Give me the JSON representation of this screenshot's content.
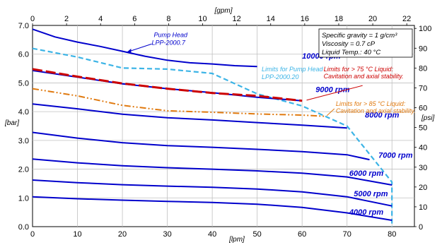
{
  "chart_data": {
    "type": "line",
    "x_label": "[lpm]",
    "y_label": "[bar]",
    "x2_label": "[gpm]",
    "y2_label": "[psi]",
    "xlim": [
      0,
      85
    ],
    "ylim": [
      0,
      7
    ],
    "x2lim": [
      0,
      22.45
    ],
    "y2lim": [
      0,
      101.5
    ],
    "x_ticks": [
      "0",
      "10",
      "20",
      "30",
      "40",
      "50",
      "60",
      "70",
      "80"
    ],
    "y_ticks": [
      "0.0",
      "1.0",
      "2.0",
      "3.0",
      "4.0",
      "5.0",
      "6.0",
      "7.0"
    ],
    "x2_ticks": [
      "0",
      "2",
      "4",
      "6",
      "8",
      "10",
      "12",
      "14",
      "16",
      "18",
      "20",
      "22"
    ],
    "y2_ticks": [
      "0",
      "10",
      "20",
      "30",
      "40",
      "50",
      "60",
      "70",
      "80",
      "90",
      "100"
    ],
    "grid": true,
    "info_box": [
      "Specific gravity = 1 g/cm³",
      "Viscosity = 0.7 cP",
      "Liquid Temp.: 40 °C"
    ],
    "colors": {
      "rpm": "#0000cc",
      "pump_head_2000_20": "#3cb4e6",
      "limit_75": "#cc0000",
      "limit_85": "#e07a10",
      "grid": "#c0c0c0"
    },
    "rpm_curves": [
      {
        "name": "10000 rpm",
        "label_x": 60,
        "label_y": 5.85,
        "points": [
          [
            0,
            6.87
          ],
          [
            5,
            6.6
          ],
          [
            10,
            6.42
          ],
          [
            15,
            6.27
          ],
          [
            20,
            6.1
          ],
          [
            25,
            5.93
          ],
          [
            30,
            5.79
          ],
          [
            35,
            5.7
          ],
          [
            40,
            5.66
          ],
          [
            45,
            5.6
          ],
          [
            50,
            5.57
          ]
        ]
      },
      {
        "name": "9000 rpm",
        "label_x": 63,
        "label_y": 4.68,
        "points": [
          [
            0,
            5.43
          ],
          [
            10,
            5.2
          ],
          [
            20,
            4.97
          ],
          [
            30,
            4.8
          ],
          [
            40,
            4.66
          ],
          [
            50,
            4.5
          ],
          [
            60,
            4.38
          ]
        ]
      },
      {
        "name": "8000 rpm",
        "label_x": 74,
        "label_y": 3.8,
        "points": [
          [
            0,
            4.27
          ],
          [
            10,
            4.1
          ],
          [
            20,
            3.91
          ],
          [
            30,
            3.79
          ],
          [
            40,
            3.71
          ],
          [
            50,
            3.62
          ],
          [
            60,
            3.53
          ],
          [
            70,
            3.43
          ]
        ]
      },
      {
        "name": "7000 rpm",
        "label_x": 77,
        "label_y": 2.4,
        "points": [
          [
            0,
            3.28
          ],
          [
            10,
            3.08
          ],
          [
            20,
            2.92
          ],
          [
            30,
            2.82
          ],
          [
            40,
            2.76
          ],
          [
            50,
            2.69
          ],
          [
            60,
            2.61
          ],
          [
            70,
            2.5
          ],
          [
            75,
            2.33
          ]
        ]
      },
      {
        "name": "6000 rpm",
        "label_x": 70.5,
        "label_y": 1.77,
        "points": [
          [
            0,
            2.35
          ],
          [
            10,
            2.22
          ],
          [
            20,
            2.12
          ],
          [
            30,
            2.05
          ],
          [
            40,
            2.0
          ],
          [
            50,
            1.94
          ],
          [
            60,
            1.86
          ],
          [
            70,
            1.73
          ],
          [
            80,
            1.45
          ]
        ]
      },
      {
        "name": "5000 rpm",
        "label_x": 71.5,
        "label_y": 1.06,
        "points": [
          [
            0,
            1.62
          ],
          [
            10,
            1.53
          ],
          [
            20,
            1.46
          ],
          [
            30,
            1.41
          ],
          [
            40,
            1.37
          ],
          [
            50,
            1.31
          ],
          [
            60,
            1.21
          ],
          [
            70,
            1.04
          ],
          [
            80,
            0.72
          ]
        ]
      },
      {
        "name": "4000 rpm",
        "label_x": 70.5,
        "label_y": 0.42,
        "points": [
          [
            0,
            1.04
          ],
          [
            10,
            0.97
          ],
          [
            20,
            0.92
          ],
          [
            30,
            0.88
          ],
          [
            40,
            0.84
          ],
          [
            50,
            0.78
          ],
          [
            60,
            0.67
          ],
          [
            70,
            0.48
          ],
          [
            80,
            0.22
          ]
        ]
      }
    ],
    "pump_head_2000_20": {
      "name": "Limits for Pump Head LPP-2000.20",
      "label_lines": [
        "Limits for Pump Head",
        "LPP-2000.20"
      ],
      "label_x": 51,
      "label_y": 5.4,
      "points": [
        [
          0,
          6.2
        ],
        [
          10,
          5.9
        ],
        [
          20,
          5.52
        ],
        [
          30,
          5.48
        ],
        [
          40,
          5.33
        ],
        [
          50,
          4.62
        ],
        [
          60,
          4.2
        ],
        [
          70,
          3.5
        ],
        [
          80,
          1.55
        ],
        [
          80,
          0.0
        ]
      ]
    },
    "limit_75": {
      "name": "Limits for > 75 °C Liquid: Cavitation and axial stability.",
      "label_lines": [
        "Limits for > 75 °C Liquid:",
        "Cavitation and axial stability."
      ],
      "label_x": 64.8,
      "label_y": 5.4,
      "points": [
        [
          0,
          5.48
        ],
        [
          10,
          5.22
        ],
        [
          20,
          4.98
        ],
        [
          30,
          4.8
        ],
        [
          40,
          4.65
        ],
        [
          50,
          4.55
        ],
        [
          60,
          4.38
        ]
      ]
    },
    "limit_85": {
      "name": "Limits for > 85 °C Liquid: Cavitation and axial stability.",
      "label_lines": [
        "Limits for > 85 °C Liquid:",
        "Cavitation and axial stability."
      ],
      "label_x": 67.5,
      "label_y": 4.2,
      "points": [
        [
          0,
          4.8
        ],
        [
          10,
          4.55
        ],
        [
          20,
          4.22
        ],
        [
          30,
          4.03
        ],
        [
          40,
          3.98
        ],
        [
          50,
          3.92
        ],
        [
          60,
          3.88
        ],
        [
          65,
          3.84
        ]
      ]
    },
    "pump_head_2000_7_label": {
      "label_lines": [
        "Pump Head",
        "LPP-2000.7"
      ],
      "label_x": 27,
      "label_y": 6.6,
      "arrow_to": [
        21,
        6.07
      ]
    }
  }
}
